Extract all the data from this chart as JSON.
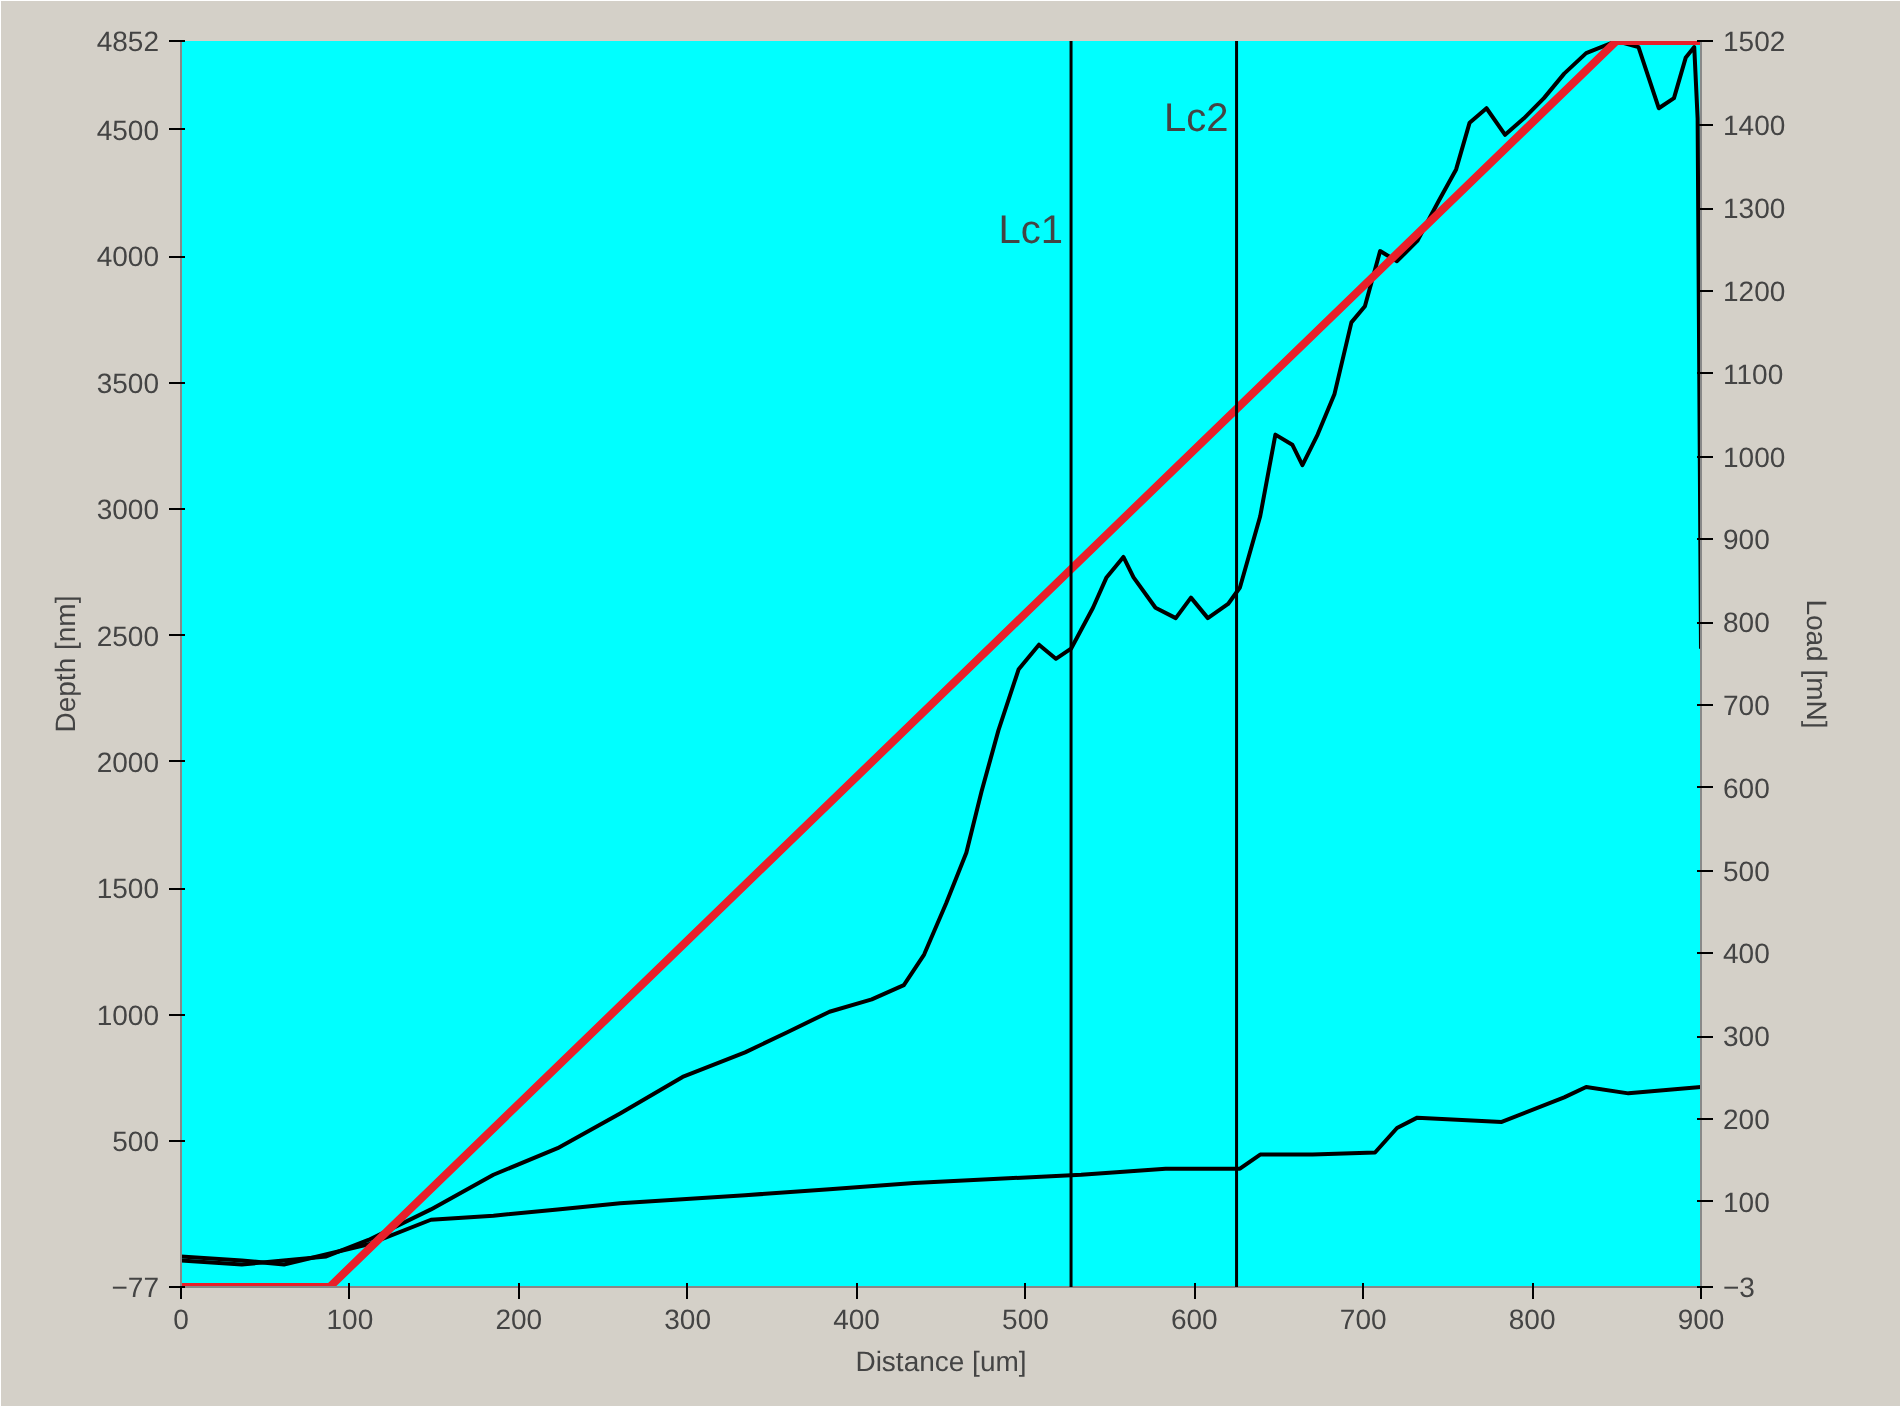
{
  "chart_data": {
    "type": "line",
    "xlabel": "Distance [um]",
    "ylabel": "Depth [nm]",
    "y2label": "Load [mN]",
    "xlim": [
      0,
      900
    ],
    "xticks": [
      0,
      100,
      200,
      300,
      400,
      500,
      600,
      700,
      800,
      900
    ],
    "ylim": [
      -77,
      4852
    ],
    "yticks": [
      -77,
      500,
      1000,
      1500,
      2000,
      2500,
      3000,
      3500,
      4000,
      4500,
      4852
    ],
    "y2lim": [
      -3,
      1502
    ],
    "y2ticks": [
      -3,
      100,
      200,
      300,
      400,
      500,
      600,
      700,
      800,
      900,
      1000,
      1100,
      1200,
      1300,
      1400,
      1502
    ],
    "grid": false,
    "marker": "none",
    "line_style": "solid",
    "series": [
      {
        "color": "#000000",
        "x": [
          0,
          36,
          86,
          111,
          148,
          185,
          223,
          260,
          297,
          334,
          359,
          384,
          409,
          428,
          440,
          453,
          465,
          474,
          484,
          496,
          508,
          518,
          527,
          540,
          548,
          558,
          564,
          577,
          589,
          598,
          608,
          620,
          627,
          639,
          648,
          658,
          664,
          673,
          683,
          693,
          701,
          710,
          720,
          732,
          745,
          755,
          763,
          773,
          784,
          795,
          807,
          819,
          832,
          850,
          863,
          869,
          875,
          884,
          891,
          896,
          898,
          900
        ],
        "values": [
          28,
          12,
          44,
          109,
          230,
          367,
          472,
          609,
          754,
          851,
          931,
          1012,
          1061,
          1117,
          1238,
          1440,
          1641,
          1883,
          2125,
          2367,
          2464,
          2408,
          2448,
          2610,
          2730,
          2811,
          2730,
          2610,
          2569,
          2650,
          2569,
          2625,
          2690,
          2972,
          3295,
          3255,
          3174,
          3295,
          3456,
          3739,
          3803,
          4021,
          3981,
          4061,
          4223,
          4344,
          4529,
          4586,
          4481,
          4545,
          4626,
          4723,
          4804,
          4852,
          4828,
          4707,
          4586,
          4626,
          4787,
          4828,
          4545,
          2448
        ]
      },
      {
        "color": "#000000",
        "x": [
          0,
          36,
          61,
          111,
          148,
          185,
          223,
          260,
          297,
          334,
          384,
          434,
          484,
          533,
          583,
          627,
          639,
          670,
          707,
          720,
          732,
          782,
          819,
          832,
          857,
          900
        ],
        "values": [
          44,
          28,
          12,
          92,
          189,
          205,
          230,
          254,
          270,
          286,
          310,
          334,
          351,
          367,
          391,
          391,
          447,
          447,
          455,
          552,
          593,
          576,
          673,
          714,
          689,
          714
        ]
      },
      {
        "color": "#e8202a",
        "axis": "y2",
        "x": [
          0,
          88,
          850,
          900
        ],
        "values": [
          -3,
          -3,
          1502,
          1502
        ]
      }
    ],
    "ref_lines": [
      {
        "axis": "x",
        "value": 527,
        "label": "Lc1",
        "color": "#000000"
      },
      {
        "axis": "x",
        "value": 625,
        "label": "Lc2",
        "color": "#000000"
      }
    ]
  }
}
